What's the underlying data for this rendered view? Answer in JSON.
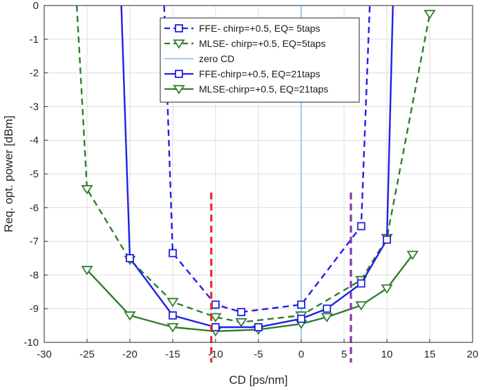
{
  "chart_data": {
    "type": "line",
    "xlabel": "CD [ps/nm]",
    "ylabel": "Req. opt. power [dBm]",
    "xlim": [
      -30,
      20
    ],
    "ylim": [
      -10,
      0
    ],
    "xticks": [
      -30,
      -25,
      -20,
      -15,
      -10,
      -5,
      0,
      5,
      10,
      15,
      20
    ],
    "yticks": [
      0,
      -1,
      -2,
      -3,
      -4,
      -5,
      -6,
      -7,
      -8,
      -9,
      -10
    ],
    "grid": true,
    "legend": "top-center",
    "series": [
      {
        "name": "FFE- chirp=+0.5, EQ= 5taps",
        "color": "#1f1fe6",
        "style": "dashed",
        "marker": "square",
        "points": [
          [
            -16,
            0
          ],
          [
            -15,
            -7.35
          ],
          [
            -10,
            -8.88
          ],
          [
            -7,
            -9.1
          ],
          [
            0,
            -8.88
          ],
          [
            7,
            -6.55
          ],
          [
            8,
            0
          ]
        ],
        "markers": [
          [
            -15,
            -7.35
          ],
          [
            -10,
            -8.88
          ],
          [
            -7,
            -9.1
          ],
          [
            0,
            -8.88
          ],
          [
            7,
            -6.55
          ]
        ]
      },
      {
        "name": "MLSE- chirp=+0.5, EQ=5taps",
        "color": "#2e7d2e",
        "style": "dashed",
        "marker": "triangle-down",
        "points": [
          [
            -26.2,
            0
          ],
          [
            -25,
            -5.45
          ],
          [
            -20,
            -7.55
          ],
          [
            -15,
            -8.8
          ],
          [
            -10,
            -9.25
          ],
          [
            -7,
            -9.4
          ],
          [
            0,
            -9.2
          ],
          [
            7,
            -8.15
          ],
          [
            10,
            -6.9
          ],
          [
            15,
            -0.25
          ]
        ],
        "markers": [
          [
            -25,
            -5.45
          ],
          [
            -20,
            -7.55
          ],
          [
            -15,
            -8.8
          ],
          [
            -10,
            -9.25
          ],
          [
            -7,
            -9.4
          ],
          [
            0,
            -9.2
          ],
          [
            7,
            -8.15
          ],
          [
            10,
            -6.9
          ],
          [
            15,
            -0.25
          ]
        ]
      },
      {
        "name": "zero CD",
        "color": "#3a9ad9",
        "style": "solid",
        "marker": "none",
        "points": [
          [
            0,
            0
          ],
          [
            0,
            -10
          ]
        ],
        "markers": []
      },
      {
        "name": "FFE-chirp=+0.5, EQ=21taps",
        "color": "#1f1fe6",
        "style": "solid",
        "marker": "square",
        "points": [
          [
            -21,
            0
          ],
          [
            -20,
            -7.5
          ],
          [
            -15,
            -9.2
          ],
          [
            -10,
            -9.55
          ],
          [
            -5,
            -9.55
          ],
          [
            0,
            -9.3
          ],
          [
            3,
            -9.0
          ],
          [
            7,
            -8.25
          ],
          [
            10,
            -6.95
          ],
          [
            10.7,
            0
          ]
        ],
        "markers": [
          [
            -20,
            -7.5
          ],
          [
            -15,
            -9.2
          ],
          [
            -10,
            -9.55
          ],
          [
            -5,
            -9.55
          ],
          [
            0,
            -9.3
          ],
          [
            3,
            -9.0
          ],
          [
            7,
            -8.25
          ],
          [
            10,
            -6.95
          ]
        ]
      },
      {
        "name": "MLSE-chirp=+0.5, EQ=21taps",
        "color": "#2e7d2e",
        "style": "solid",
        "marker": "triangle-down",
        "points": [
          [
            -25,
            -7.85
          ],
          [
            -20,
            -9.2
          ],
          [
            -15,
            -9.55
          ],
          [
            -10,
            -9.67
          ],
          [
            -5,
            -9.62
          ],
          [
            0,
            -9.45
          ],
          [
            3,
            -9.25
          ],
          [
            7,
            -8.9
          ],
          [
            10,
            -8.4
          ],
          [
            13,
            -7.4
          ]
        ],
        "markers": [
          [
            -25,
            -7.85
          ],
          [
            -20,
            -9.2
          ],
          [
            -15,
            -9.55
          ],
          [
            -10,
            -9.67
          ],
          [
            -5,
            -9.62
          ],
          [
            0,
            -9.45
          ],
          [
            3,
            -9.25
          ],
          [
            7,
            -8.9
          ],
          [
            10,
            -8.4
          ],
          [
            13,
            -7.4
          ]
        ]
      }
    ],
    "annotations": [
      {
        "x": -10.5,
        "color": "#e52b2b",
        "style": "dashed",
        "y_from": -10.6,
        "y_to": -5.55
      },
      {
        "x": 5.8,
        "color": "#8a35a8",
        "style": "dashed",
        "y_from": -10.6,
        "y_to": -5.55
      }
    ]
  }
}
